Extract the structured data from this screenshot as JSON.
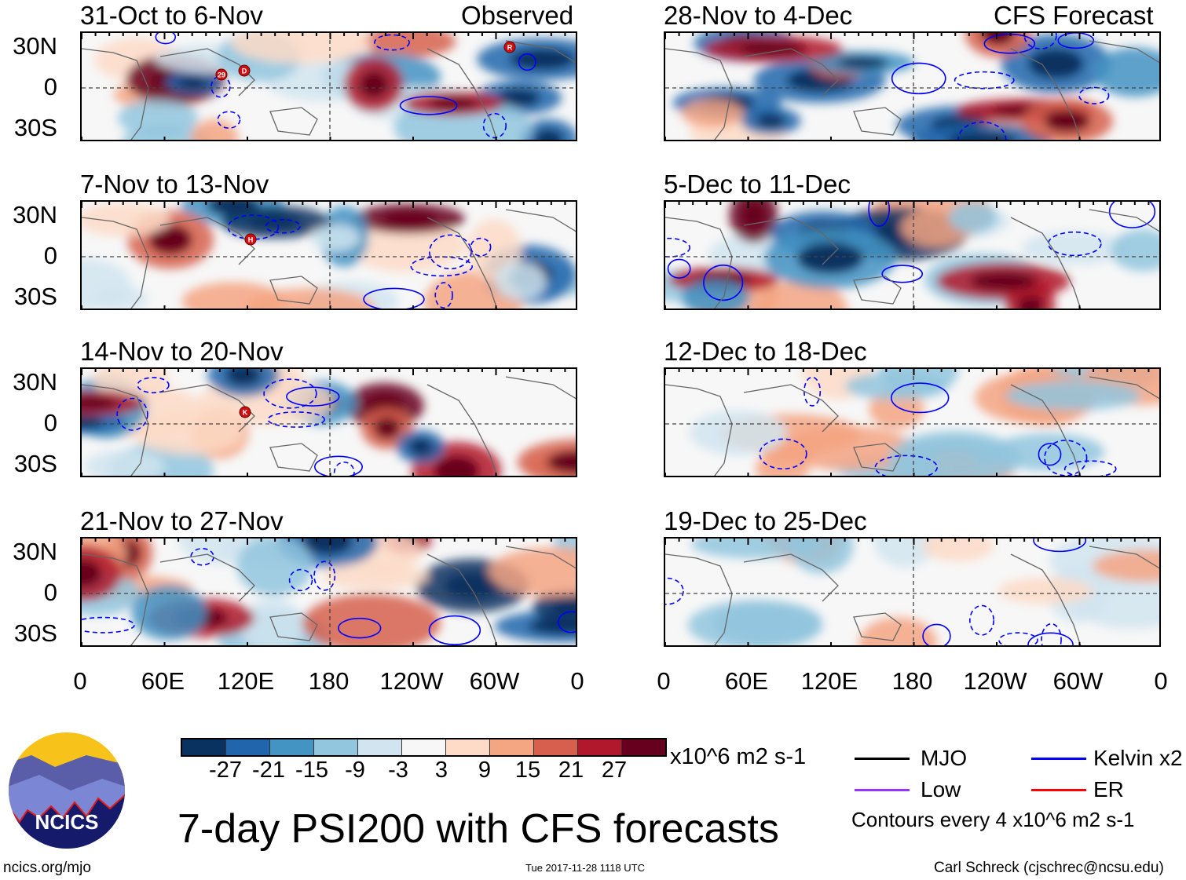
{
  "observed_label": "Observed",
  "forecast_label": "CFS Forecast",
  "chart_data": {
    "type": "heatmap",
    "title": "7-day PSI200 with CFS forecasts",
    "variable": "PSI200 anomaly",
    "units": "x10^6 m2 s-1",
    "contour_note": "Contours every 4 x10^6 m2 s-1",
    "ylabels": [
      "30N",
      "0",
      "30S"
    ],
    "xlabels": [
      "0",
      "60E",
      "120E",
      "180",
      "120W",
      "60W",
      "0"
    ],
    "colorbar": {
      "ticks": [
        "-27",
        "-21",
        "-15",
        "-9",
        "-3",
        "3",
        "9",
        "15",
        "21",
        "27"
      ],
      "colors": [
        "#0a3260",
        "#2166ac",
        "#4393c3",
        "#92c5de",
        "#d1e5f0",
        "#f7f7f7",
        "#fddbc7",
        "#f4a582",
        "#d6604d",
        "#b2182b",
        "#67001f"
      ]
    },
    "legend": [
      {
        "label": "MJO",
        "color": "#000000"
      },
      {
        "label": "Kelvin x2",
        "color": "#0000ff"
      },
      {
        "label": "Low",
        "color": "#9933ff"
      },
      {
        "label": "ER",
        "color": "#ff0000"
      }
    ],
    "observed_panels": [
      {
        "title": "31-Oct to 6-Nov",
        "storms": [
          "29",
          "D",
          "R"
        ]
      },
      {
        "title": "7-Nov to 13-Nov",
        "storms": [
          "H"
        ]
      },
      {
        "title": "14-Nov to 20-Nov",
        "storms": [
          "K"
        ]
      },
      {
        "title": "21-Nov to 27-Nov",
        "storms": []
      }
    ],
    "forecast_panels": [
      {
        "title": "28-Nov to 4-Dec"
      },
      {
        "title": "5-Dec to 11-Dec"
      },
      {
        "title": "12-Dec to 18-Dec"
      },
      {
        "title": "19-Dec to 25-Dec"
      }
    ]
  },
  "footer": {
    "logo_text": "NCICS",
    "url": "ncics.org/mjo",
    "timestamp": "Tue 2017-11-28 1118 UTC",
    "author": "Carl Schreck (cjschrec@ncsu.edu)"
  }
}
